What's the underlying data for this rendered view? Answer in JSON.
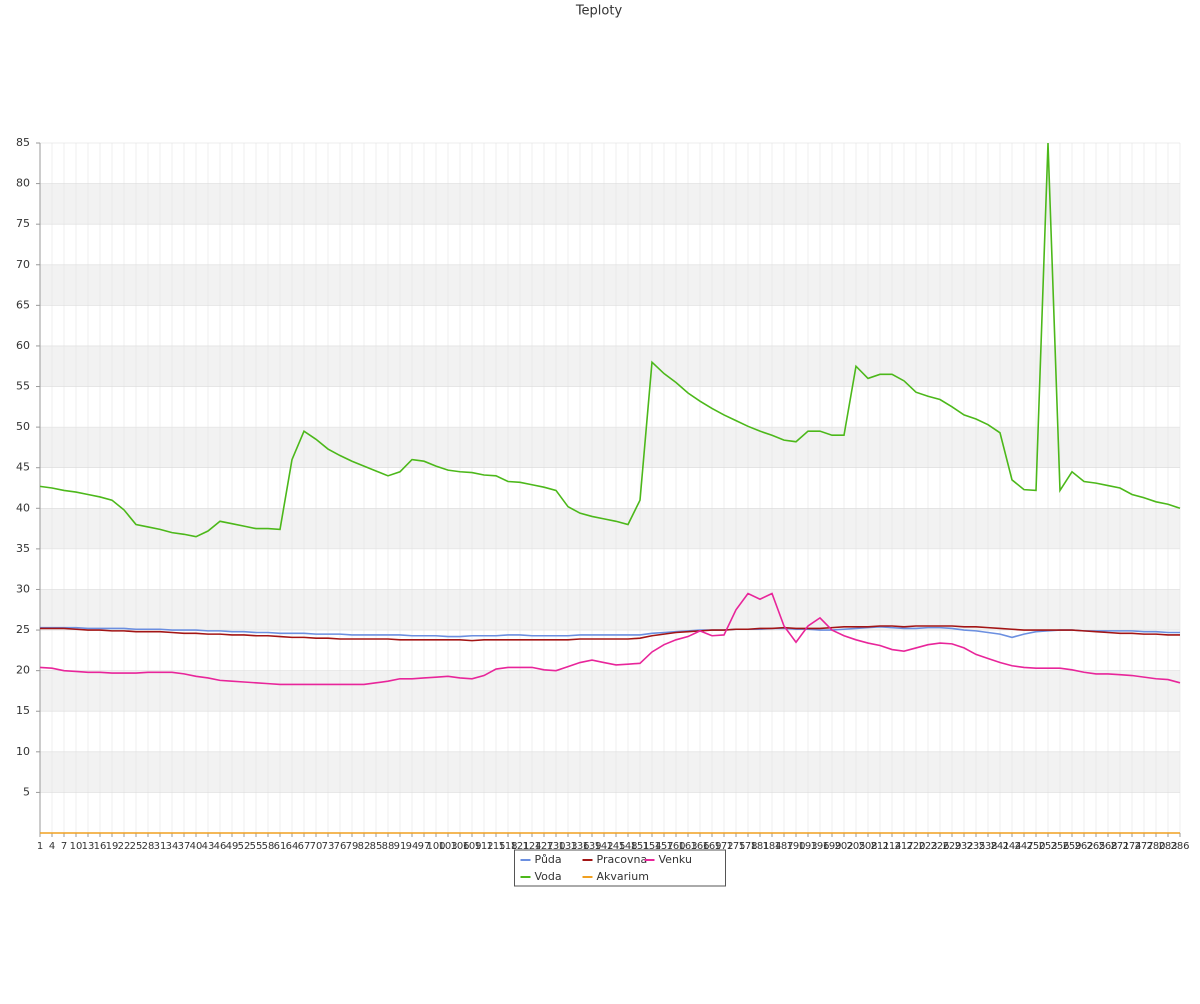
{
  "chart_data": {
    "type": "line",
    "title": "Teploty",
    "x": [
      1,
      4,
      7,
      10,
      13,
      16,
      19,
      22,
      25,
      28,
      31,
      34,
      37,
      40,
      43,
      46,
      49,
      52,
      55,
      58,
      61,
      64,
      67,
      70,
      73,
      76,
      79,
      82,
      85,
      88,
      91,
      94,
      97,
      100,
      103,
      106,
      109,
      112,
      115,
      118,
      121,
      124,
      127,
      130,
      133,
      136,
      139,
      142,
      145,
      148,
      151,
      154,
      157,
      160,
      163,
      166,
      169,
      172,
      175,
      178,
      181,
      184,
      187,
      190,
      193,
      196,
      199,
      202,
      205,
      208,
      211,
      214,
      217,
      220,
      223,
      226,
      229,
      232,
      235,
      238,
      241,
      244,
      247,
      250,
      253,
      256,
      259,
      262,
      265,
      268,
      271,
      274,
      277,
      280,
      283,
      286
    ],
    "xlim": [
      1,
      286
    ],
    "ylim": [
      0,
      85
    ],
    "yticks": [
      5,
      10,
      15,
      20,
      25,
      30,
      35,
      40,
      45,
      50,
      55,
      60,
      65,
      70,
      75,
      80,
      85
    ],
    "grid": true,
    "legend": "bottom",
    "series": [
      {
        "name": "Půda",
        "color": "#6b8fe0",
        "values": [
          25.3,
          25.3,
          25.3,
          25.3,
          25.2,
          25.2,
          25.2,
          25.2,
          25.1,
          25.1,
          25.1,
          25.0,
          25.0,
          25.0,
          24.9,
          24.9,
          24.8,
          24.8,
          24.7,
          24.7,
          24.6,
          24.6,
          24.6,
          24.5,
          24.5,
          24.5,
          24.4,
          24.4,
          24.4,
          24.4,
          24.4,
          24.3,
          24.3,
          24.3,
          24.2,
          24.2,
          24.3,
          24.3,
          24.3,
          24.4,
          24.4,
          24.3,
          24.3,
          24.3,
          24.3,
          24.4,
          24.4,
          24.4,
          24.4,
          24.4,
          24.4,
          24.6,
          24.7,
          24.8,
          24.9,
          25.0,
          25.0,
          25.0,
          25.1,
          25.1,
          25.1,
          25.2,
          25.2,
          25.1,
          25.1,
          25.0,
          25.0,
          25.1,
          25.2,
          25.3,
          25.4,
          25.3,
          25.2,
          25.2,
          25.3,
          25.3,
          25.2,
          25.0,
          24.9,
          24.7,
          24.5,
          24.1,
          24.5,
          24.8,
          24.9,
          25.0,
          25.0,
          24.9,
          24.9,
          24.9,
          24.9,
          24.9,
          24.8,
          24.8,
          24.7,
          24.7
        ]
      },
      {
        "name": "Pracovna",
        "color": "#a31515",
        "values": [
          25.2,
          25.2,
          25.2,
          25.1,
          25.0,
          25.0,
          24.9,
          24.9,
          24.8,
          24.8,
          24.8,
          24.7,
          24.6,
          24.6,
          24.5,
          24.5,
          24.4,
          24.4,
          24.3,
          24.3,
          24.2,
          24.1,
          24.1,
          24.0,
          24.0,
          23.9,
          23.9,
          23.9,
          23.9,
          23.9,
          23.8,
          23.8,
          23.8,
          23.8,
          23.8,
          23.8,
          23.7,
          23.8,
          23.8,
          23.8,
          23.8,
          23.8,
          23.8,
          23.8,
          23.8,
          23.9,
          23.9,
          23.9,
          23.9,
          23.9,
          24.0,
          24.3,
          24.5,
          24.7,
          24.8,
          24.9,
          25.0,
          25.0,
          25.1,
          25.1,
          25.2,
          25.2,
          25.3,
          25.2,
          25.2,
          25.2,
          25.3,
          25.4,
          25.4,
          25.4,
          25.5,
          25.5,
          25.4,
          25.5,
          25.5,
          25.5,
          25.5,
          25.4,
          25.4,
          25.3,
          25.2,
          25.1,
          25.0,
          25.0,
          25.0,
          25.0,
          25.0,
          24.9,
          24.8,
          24.7,
          24.6,
          24.6,
          24.5,
          24.5,
          24.4,
          24.4
        ]
      },
      {
        "name": "Venku",
        "color": "#e8259a",
        "values": [
          20.4,
          20.3,
          20.0,
          19.9,
          19.8,
          19.8,
          19.7,
          19.7,
          19.7,
          19.8,
          19.8,
          19.8,
          19.6,
          19.3,
          19.1,
          18.8,
          18.7,
          18.6,
          18.5,
          18.4,
          18.3,
          18.3,
          18.3,
          18.3,
          18.3,
          18.3,
          18.3,
          18.3,
          18.5,
          18.7,
          19.0,
          19.0,
          19.1,
          19.2,
          19.3,
          19.1,
          19.0,
          19.4,
          20.2,
          20.4,
          20.4,
          20.4,
          20.1,
          20.0,
          20.5,
          21.0,
          21.3,
          21.0,
          20.7,
          20.8,
          20.9,
          22.3,
          23.2,
          23.8,
          24.2,
          24.9,
          24.3,
          24.4,
          27.5,
          29.5,
          28.8,
          29.5,
          25.5,
          23.5,
          25.5,
          26.5,
          25.0,
          24.3,
          23.8,
          23.4,
          23.1,
          22.6,
          22.4,
          22.8,
          23.2,
          23.4,
          23.3,
          22.8,
          22.0,
          21.5,
          21.0,
          20.6,
          20.4,
          20.3,
          20.3,
          20.3,
          20.1,
          19.8,
          19.6,
          19.6,
          19.5,
          19.4,
          19.2,
          19.0,
          18.9,
          18.5
        ]
      },
      {
        "name": "Voda",
        "color": "#4cb81a",
        "values": [
          42.7,
          42.5,
          42.2,
          42.0,
          41.7,
          41.4,
          41.0,
          39.8,
          38.0,
          37.7,
          37.4,
          37.0,
          36.8,
          36.5,
          37.2,
          38.4,
          38.1,
          37.8,
          37.5,
          37.5,
          37.4,
          46,
          49.5,
          48.5,
          47.3,
          46.5,
          45.8,
          45.2,
          44.6,
          44.0,
          44.5,
          46.0,
          45.8,
          45.2,
          44.7,
          44.5,
          44.4,
          44.1,
          44.0,
          43.3,
          43.2,
          42.9,
          42.6,
          42.2,
          40.2,
          39.4,
          39.0,
          38.7,
          38.4,
          38.0,
          41,
          58,
          56.6,
          55.5,
          54.2,
          53.2,
          52.3,
          51.5,
          50.8,
          50.1,
          49.5,
          49.0,
          48.4,
          48.2,
          49.5,
          49.5,
          49.0,
          49.0,
          57.5,
          56.0,
          56.5,
          56.5,
          55.7,
          54.3,
          53.8,
          53.4,
          52.5,
          51.5,
          51.0,
          50.3,
          49.3,
          43.5,
          42.3,
          42.2,
          85,
          42.2,
          44.5,
          43.3,
          43.1,
          42.8,
          42.5,
          41.7,
          41.3,
          40.8,
          40.5,
          40.0
        ]
      },
      {
        "name": "Akvarium",
        "color": "#f0a020",
        "values": [
          0,
          0,
          0,
          0,
          0,
          0,
          0,
          0,
          0,
          0,
          0,
          0,
          0,
          0,
          0,
          0,
          0,
          0,
          0,
          0,
          0,
          0,
          0,
          0,
          0,
          0,
          0,
          0,
          0,
          0,
          0,
          0,
          0,
          0,
          0,
          0,
          0,
          0,
          0,
          0,
          0,
          0,
          0,
          0,
          0,
          0,
          0,
          0,
          0,
          0,
          0,
          0,
          0,
          0,
          0,
          0,
          0,
          0,
          0,
          0,
          0,
          0,
          0,
          0,
          0,
          0,
          0,
          0,
          0,
          0,
          0,
          0,
          0,
          0,
          0,
          0,
          0,
          0,
          0,
          0,
          0,
          0,
          0,
          0,
          0,
          0,
          0,
          0,
          0,
          0,
          0,
          0,
          0,
          0,
          0,
          0
        ]
      }
    ]
  }
}
